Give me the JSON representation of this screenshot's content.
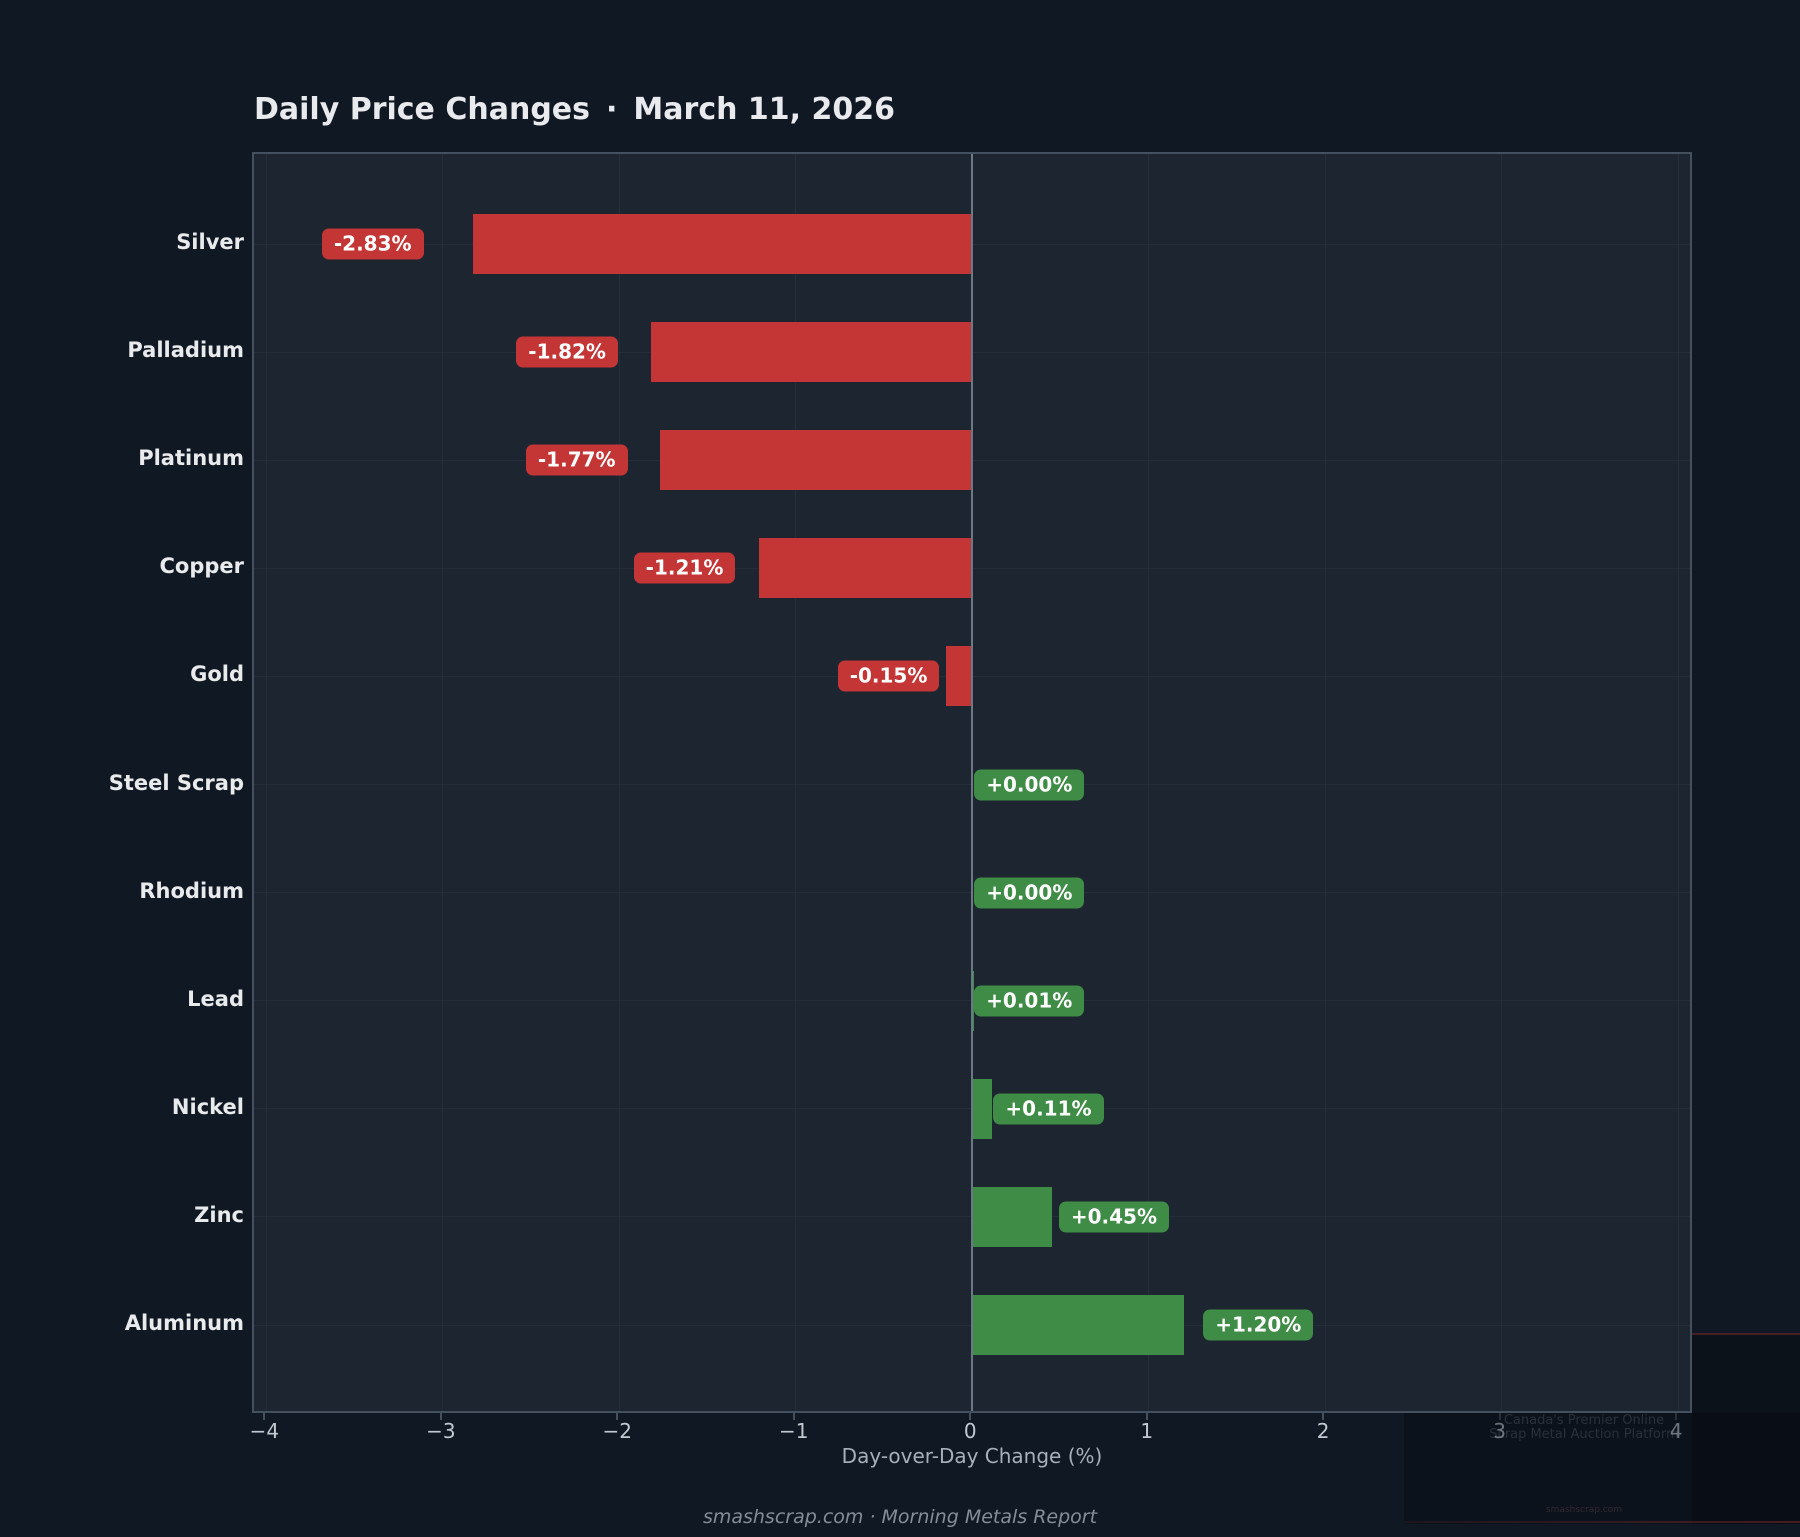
{
  "title": {
    "left": "Daily Price Changes",
    "separator": "·",
    "right": "March 11, 2026"
  },
  "chart_data": {
    "type": "bar",
    "orientation": "horizontal",
    "title": "Daily Price Changes · March 11, 2026",
    "categories": [
      "Silver",
      "Palladium",
      "Platinum",
      "Copper",
      "Gold",
      "Steel Scrap",
      "Rhodium",
      "Lead",
      "Nickel",
      "Zinc",
      "Aluminum"
    ],
    "values": [
      -2.83,
      -1.82,
      -1.77,
      -1.21,
      -0.15,
      0.0,
      0.0,
      0.01,
      0.11,
      0.45,
      1.2
    ],
    "value_labels": [
      "-2.83%",
      "-1.82%",
      "-1.77%",
      "-1.21%",
      "-0.15%",
      "+0.00%",
      "+0.00%",
      "+0.01%",
      "+0.11%",
      "+0.45%",
      "+1.20%"
    ],
    "xlabel": "Day-over-Day Change (%)",
    "xlim": [
      -4.07,
      4.09
    ],
    "xticks": [
      -4,
      -3,
      -2,
      -1,
      0,
      1,
      2,
      3,
      4
    ],
    "xtick_labels": [
      "−4",
      "−3",
      "−2",
      "−1",
      "0",
      "1",
      "2",
      "3",
      "4"
    ],
    "grid": true,
    "colors": {
      "negative": "#c43636",
      "positive": "#3e8c46",
      "figure_background": "#101823",
      "plot_background": "#1d2630",
      "zero_line": "#6b7885",
      "spine": "#43505e"
    }
  },
  "footer": {
    "text": "smashscrap.com · Morning Metals Report"
  },
  "watermark": {
    "line1": "Canada's Premier Online",
    "line2": "Scrap Metal Auction Platform",
    "small": "smashscrap.com"
  }
}
